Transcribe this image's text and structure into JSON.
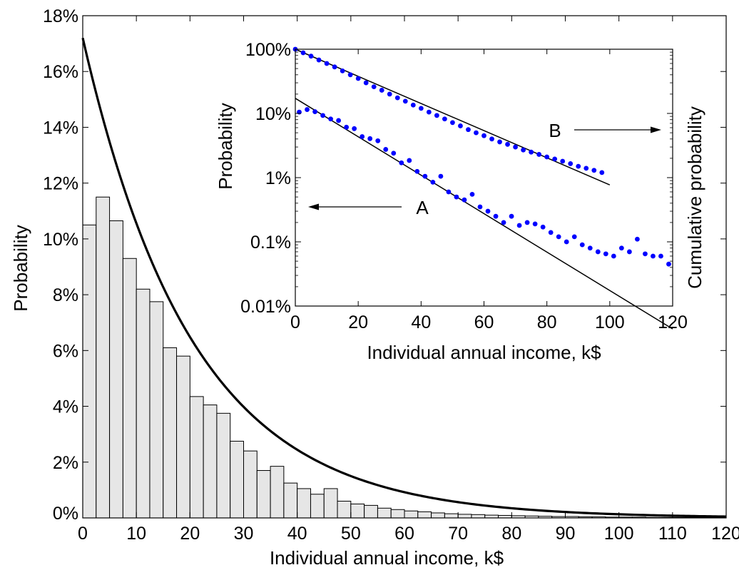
{
  "chart_data": [
    {
      "type": "bar",
      "panel": "main",
      "xlabel": "Individual annual income, k$",
      "ylabel": "Probability",
      "xlim": [
        0,
        120
      ],
      "ylim": [
        0,
        18
      ],
      "x_ticks": [
        0,
        10,
        20,
        30,
        40,
        50,
        60,
        70,
        80,
        90,
        100,
        110,
        120
      ],
      "x_tick_labels": [
        "0",
        "10",
        "20",
        "30",
        "40",
        "50",
        "60",
        "70",
        "80",
        "90",
        "100",
        "110",
        "120"
      ],
      "y_ticks": [
        0,
        2,
        4,
        6,
        8,
        10,
        12,
        14,
        16,
        18
      ],
      "y_tick_labels": [
        "0%",
        "2%",
        "4%",
        "6%",
        "8%",
        "10%",
        "12%",
        "14%",
        "16%",
        "18%"
      ],
      "bar_width": 2.5,
      "bar_color": "#e6e6e6",
      "bars": {
        "x": [
          1.25,
          3.75,
          6.25,
          8.75,
          11.25,
          13.75,
          16.25,
          18.75,
          21.25,
          23.75,
          26.25,
          28.75,
          31.25,
          33.75,
          36.25,
          38.75,
          41.25,
          43.75,
          46.25,
          48.75,
          51.25,
          53.75,
          56.25,
          58.75,
          61.25,
          63.75,
          66.25,
          68.75,
          71.25,
          73.75,
          76.25,
          78.75,
          81.25,
          83.75,
          86.25,
          88.75,
          91.25,
          93.75,
          96.25,
          98.75,
          101.25,
          103.75,
          106.25,
          108.75,
          111.25,
          113.75,
          116.25,
          118.75
        ],
        "values": [
          10.5,
          11.5,
          10.65,
          9.3,
          8.2,
          7.75,
          6.1,
          5.8,
          4.35,
          4.05,
          3.75,
          2.75,
          2.4,
          1.7,
          1.85,
          1.25,
          1.05,
          0.85,
          1.05,
          0.6,
          0.5,
          0.45,
          0.35,
          0.3,
          0.25,
          0.22,
          0.18,
          0.15,
          0.13,
          0.12,
          0.1,
          0.09,
          0.08,
          0.07,
          0.06,
          0.05,
          0.05,
          0.04,
          0.04,
          0.03,
          0.03,
          0.03,
          0.02,
          0.02,
          0.02,
          0.02,
          0.02,
          0.02
        ]
      },
      "fit_curve": {
        "type": "line",
        "function": "exponential",
        "y0_percent": 17.2,
        "scale_k": 20.5,
        "color": "#000000"
      }
    },
    {
      "type": "scatter",
      "panel": "inset",
      "xlabel": "Individual annual income, k$",
      "ylabel_left": "Probability",
      "ylabel_right": "Cumulative probability",
      "xlim": [
        0,
        120
      ],
      "ylim": [
        0.01,
        100
      ],
      "y_scale": "log",
      "x_ticks": [
        0,
        20,
        40,
        60,
        80,
        100,
        120
      ],
      "x_tick_labels": [
        "0",
        "20",
        "40",
        "60",
        "80",
        "100",
        "120"
      ],
      "y_ticks": [
        0.01,
        0.1,
        1,
        10,
        100
      ],
      "y_tick_labels": [
        "0.01%",
        "0.1%",
        "1%",
        "10%",
        "100%"
      ],
      "point_color": "#0000ff",
      "series": [
        {
          "name": "A",
          "x": [
            1.25,
            3.75,
            6.25,
            8.75,
            11.25,
            13.75,
            16.25,
            18.75,
            21.25,
            23.75,
            26.25,
            28.75,
            31.25,
            33.75,
            36.25,
            38.75,
            41.25,
            43.75,
            46.25,
            48.75,
            51.25,
            53.75,
            56.25,
            58.75,
            61.25,
            63.75,
            66.25,
            68.75,
            71.25,
            73.75,
            76.25,
            78.75,
            81.25,
            83.75,
            86.25,
            88.75,
            91.25,
            93.75,
            96.25,
            98.75,
            101.25,
            103.75,
            106.25,
            108.75,
            111.25,
            113.75,
            116.25,
            118.75
          ],
          "values": [
            10.5,
            11.5,
            10.65,
            9.3,
            8.2,
            7.75,
            6.1,
            5.8,
            4.35,
            4.05,
            3.75,
            2.75,
            2.4,
            1.7,
            1.85,
            1.25,
            1.05,
            0.85,
            1.05,
            0.6,
            0.5,
            0.45,
            0.55,
            0.35,
            0.3,
            0.25,
            0.2,
            0.25,
            0.18,
            0.2,
            0.19,
            0.17,
            0.14,
            0.12,
            0.1,
            0.12,
            0.09,
            0.08,
            0.07,
            0.065,
            0.06,
            0.08,
            0.07,
            0.11,
            0.065,
            0.06,
            0.06,
            0.045
          ],
          "fit": {
            "x": [
              0,
              120
            ],
            "y": [
              17.2,
              0.0044
            ]
          },
          "arrow_direction": "left"
        },
        {
          "name": "B",
          "x": [
            0,
            2.5,
            5,
            7.5,
            10,
            12.5,
            15,
            17.5,
            20,
            22.5,
            25,
            27.5,
            30,
            32.5,
            35,
            37.5,
            40,
            42.5,
            45,
            47.5,
            50,
            52.5,
            55,
            57.5,
            60,
            62.5,
            65,
            67.5,
            70,
            72.5,
            75,
            77.5,
            80,
            82.5,
            85,
            87.5,
            90,
            92.5,
            95,
            97.5
          ],
          "values": [
            100,
            88,
            78,
            68,
            60,
            53,
            46,
            40,
            35,
            30,
            26,
            23,
            20,
            17.5,
            15.5,
            13.5,
            12,
            10.5,
            9.3,
            8.2,
            7.2,
            6.4,
            5.6,
            5.0,
            4.5,
            4.0,
            3.6,
            3.3,
            3.0,
            2.7,
            2.5,
            2.3,
            2.1,
            1.95,
            1.8,
            1.65,
            1.5,
            1.4,
            1.3,
            1.2
          ],
          "fit": {
            "x": [
              0,
              100
            ],
            "y": [
              100,
              0.77
            ]
          },
          "arrow_direction": "right"
        }
      ]
    }
  ]
}
